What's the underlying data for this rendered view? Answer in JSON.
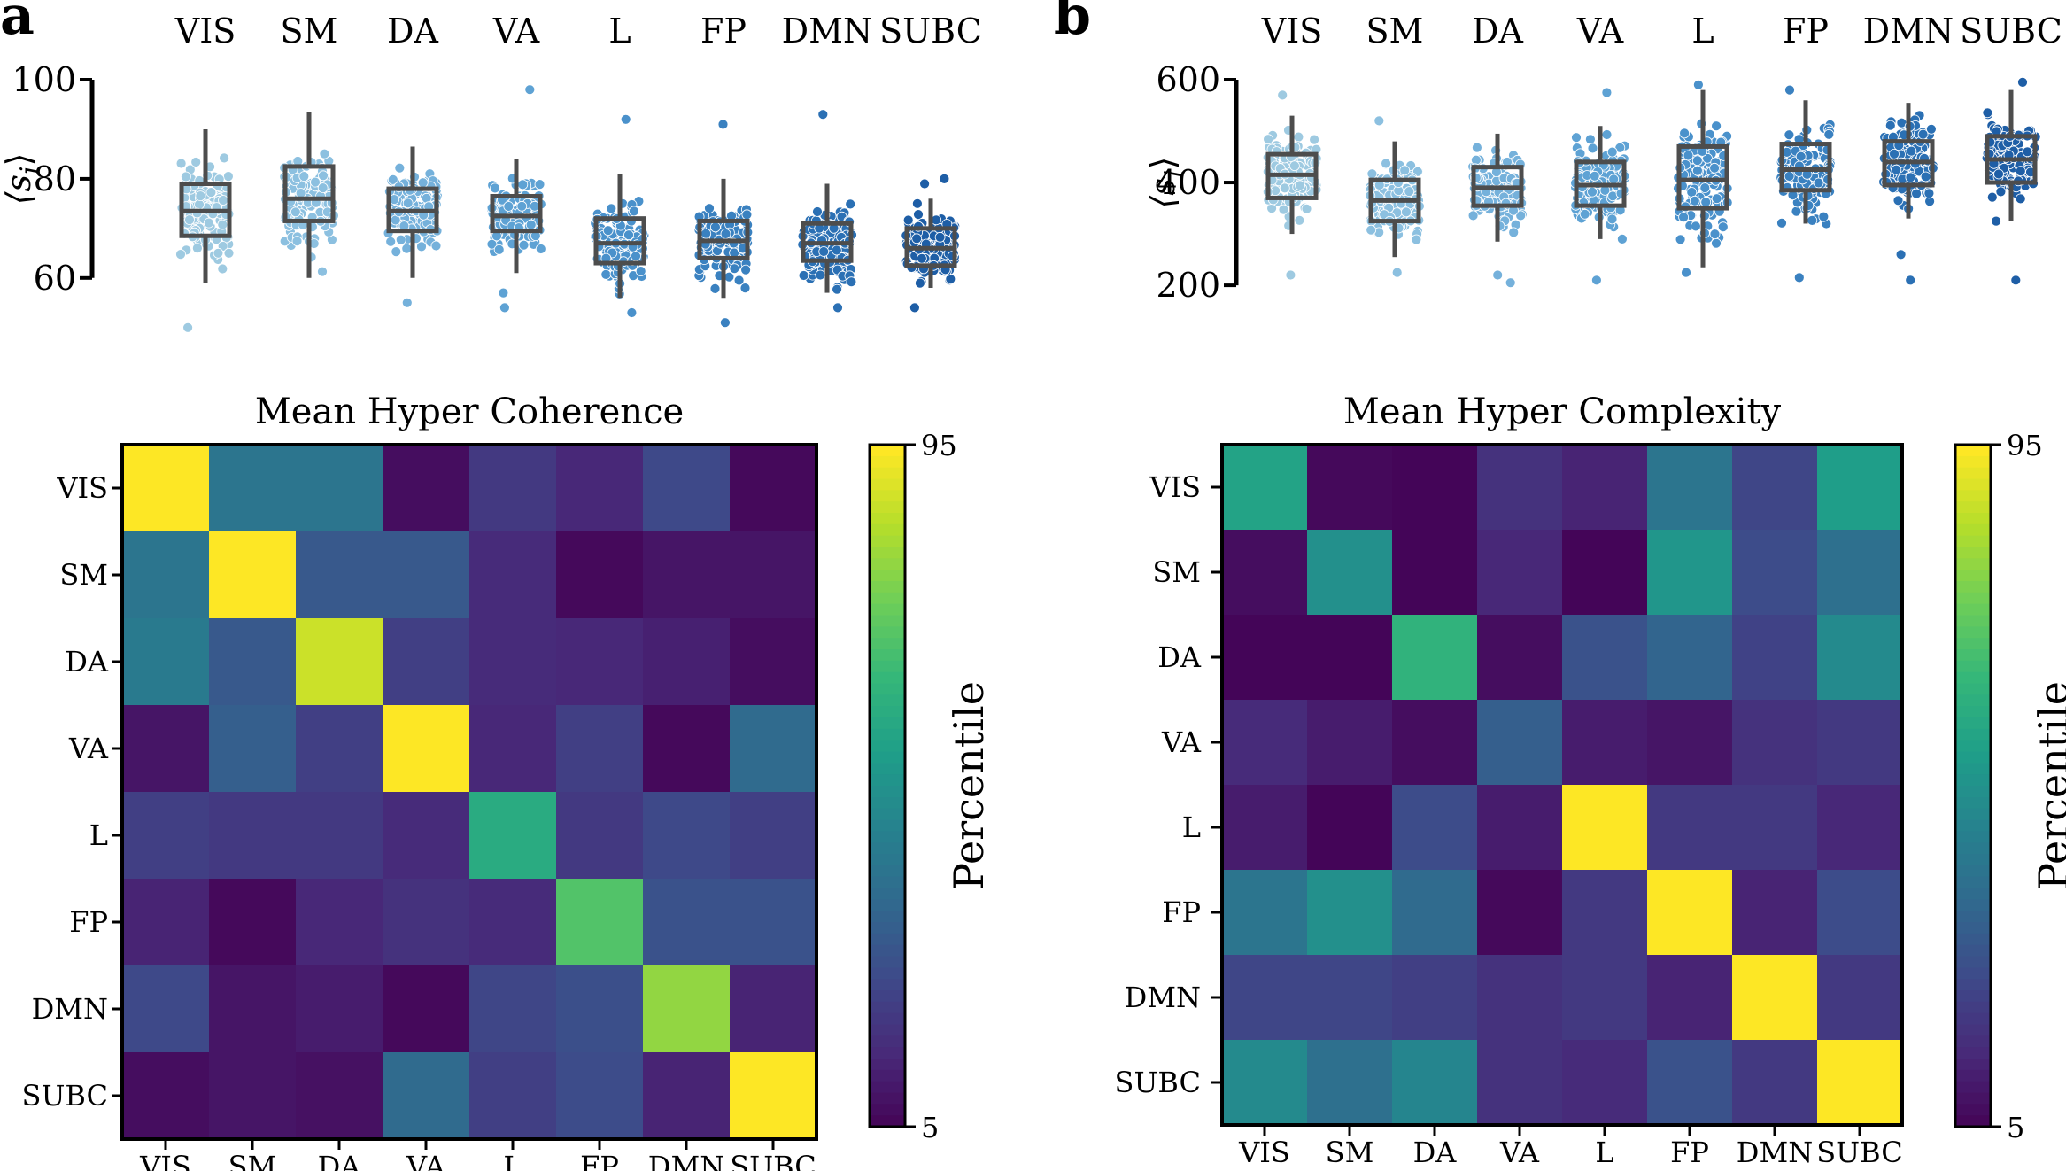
{
  "chart_data": [
    {
      "panel": "a",
      "type": "box-strip",
      "title": "",
      "ylabel": "⟨s_i⟩",
      "ylim": [
        58,
        100
      ],
      "yticks": [
        "60",
        "80",
        "100"
      ],
      "categories": [
        "VIS",
        "SM",
        "DA",
        "VA",
        "L",
        "FP",
        "DMN",
        "SUBC"
      ],
      "point_colors": [
        "#9ecae1",
        "#8cc0e0",
        "#75b1db",
        "#5ea2d4",
        "#4a91cb",
        "#3a81c0",
        "#2b70b4",
        "#1e5ea6"
      ],
      "boxes": [
        {
          "min": 59,
          "q1": 68.5,
          "median": 73.5,
          "q3": 79,
          "max": 90
        },
        {
          "min": 60,
          "q1": 71.5,
          "median": 76,
          "q3": 82.5,
          "max": 93.5
        },
        {
          "min": 60,
          "q1": 69.5,
          "median": 73.5,
          "q3": 78,
          "max": 86.5
        },
        {
          "min": 61,
          "q1": 69.5,
          "median": 72.5,
          "q3": 76.5,
          "max": 84
        },
        {
          "min": 56,
          "q1": 63,
          "median": 67,
          "q3": 72,
          "max": 81
        },
        {
          "min": 56,
          "q1": 64,
          "median": 67.5,
          "q3": 71.5,
          "max": 80
        },
        {
          "min": 57,
          "q1": 63.5,
          "median": 67,
          "q3": 71,
          "max": 79
        },
        {
          "min": 58,
          "q1": 62.5,
          "median": 66,
          "q3": 70,
          "max": 76
        }
      ],
      "outliers": [
        [
          50
        ],
        [],
        [
          55
        ],
        [
          54,
          57,
          98
        ],
        [
          92,
          53
        ],
        [
          51,
          91
        ],
        [
          54,
          93
        ],
        [
          54,
          79,
          80
        ]
      ]
    },
    {
      "panel": "b",
      "type": "box-strip",
      "title": "",
      "ylabel": "⟨s_i⟩",
      "ylim": [
        195,
        600
      ],
      "yticks": [
        "200",
        "400",
        "600"
      ],
      "categories": [
        "VIS",
        "SM",
        "DA",
        "VA",
        "L",
        "FP",
        "DMN",
        "SUBC"
      ],
      "point_colors": [
        "#9ecae1",
        "#8cc0e0",
        "#75b1db",
        "#5ea2d4",
        "#4a91cb",
        "#3a81c0",
        "#2b70b4",
        "#1e5ea6"
      ],
      "boxes": [
        {
          "min": 300,
          "q1": 370,
          "median": 415,
          "q3": 455,
          "max": 530
        },
        {
          "min": 255,
          "q1": 325,
          "median": 365,
          "q3": 405,
          "max": 480
        },
        {
          "min": 285,
          "q1": 355,
          "median": 390,
          "q3": 430,
          "max": 495
        },
        {
          "min": 290,
          "q1": 355,
          "median": 395,
          "q3": 440,
          "max": 510
        },
        {
          "min": 235,
          "q1": 350,
          "median": 405,
          "q3": 470,
          "max": 580
        },
        {
          "min": 320,
          "q1": 385,
          "median": 425,
          "q3": 475,
          "max": 560
        },
        {
          "min": 330,
          "q1": 395,
          "median": 440,
          "q3": 480,
          "max": 555
        },
        {
          "min": 325,
          "q1": 400,
          "median": 445,
          "q3": 490,
          "max": 580
        }
      ],
      "outliers": [
        [
          220,
          570
        ],
        [
          225,
          520
        ],
        [
          205,
          220
        ],
        [
          210,
          575
        ],
        [
          225,
          590
        ],
        [
          215,
          580
        ],
        [
          210,
          260
        ],
        [
          210,
          595
        ]
      ]
    },
    {
      "panel": "a",
      "type": "heatmap",
      "title": "Mean Hyper Coherence",
      "labels": [
        "VIS",
        "SM",
        "DA",
        "VA",
        "L",
        "FP",
        "DMN",
        "SUBC"
      ],
      "colorbar": {
        "label": "Percentile",
        "min": 5,
        "max": 95,
        "ticks": [
          "95",
          "5"
        ]
      },
      "values": [
        [
          95,
          40,
          40,
          8,
          20,
          15,
          25,
          7
        ],
        [
          40,
          95,
          30,
          30,
          16,
          7,
          10,
          10
        ],
        [
          42,
          30,
          88,
          22,
          16,
          15,
          13,
          8
        ],
        [
          10,
          32,
          22,
          95,
          15,
          22,
          7,
          36
        ],
        [
          22,
          20,
          20,
          16,
          60,
          20,
          25,
          22
        ],
        [
          14,
          7,
          15,
          18,
          16,
          70,
          28,
          28
        ],
        [
          25,
          10,
          12,
          7,
          24,
          27,
          80,
          14
        ],
        [
          8,
          10,
          9,
          36,
          22,
          26,
          14,
          95
        ]
      ]
    },
    {
      "panel": "b",
      "type": "heatmap",
      "title": "Mean Hyper Complexity",
      "labels": [
        "VIS",
        "SM",
        "DA",
        "VA",
        "L",
        "FP",
        "DMN",
        "SUBC"
      ],
      "colorbar": {
        "label": "Percentile",
        "min": 5,
        "max": 95,
        "ticks": [
          "95",
          "5"
        ]
      },
      "values": [
        [
          57,
          7,
          6,
          18,
          14,
          40,
          24,
          55
        ],
        [
          8,
          50,
          6,
          15,
          6,
          52,
          26,
          38
        ],
        [
          6,
          6,
          63,
          8,
          28,
          34,
          23,
          48
        ],
        [
          16,
          12,
          8,
          32,
          12,
          10,
          18,
          20
        ],
        [
          12,
          6,
          26,
          12,
          95,
          20,
          20,
          15
        ],
        [
          40,
          50,
          36,
          7,
          20,
          95,
          14,
          26
        ],
        [
          24,
          24,
          22,
          18,
          20,
          14,
          95,
          20
        ],
        [
          48,
          38,
          46,
          18,
          16,
          28,
          20,
          95
        ]
      ]
    }
  ]
}
